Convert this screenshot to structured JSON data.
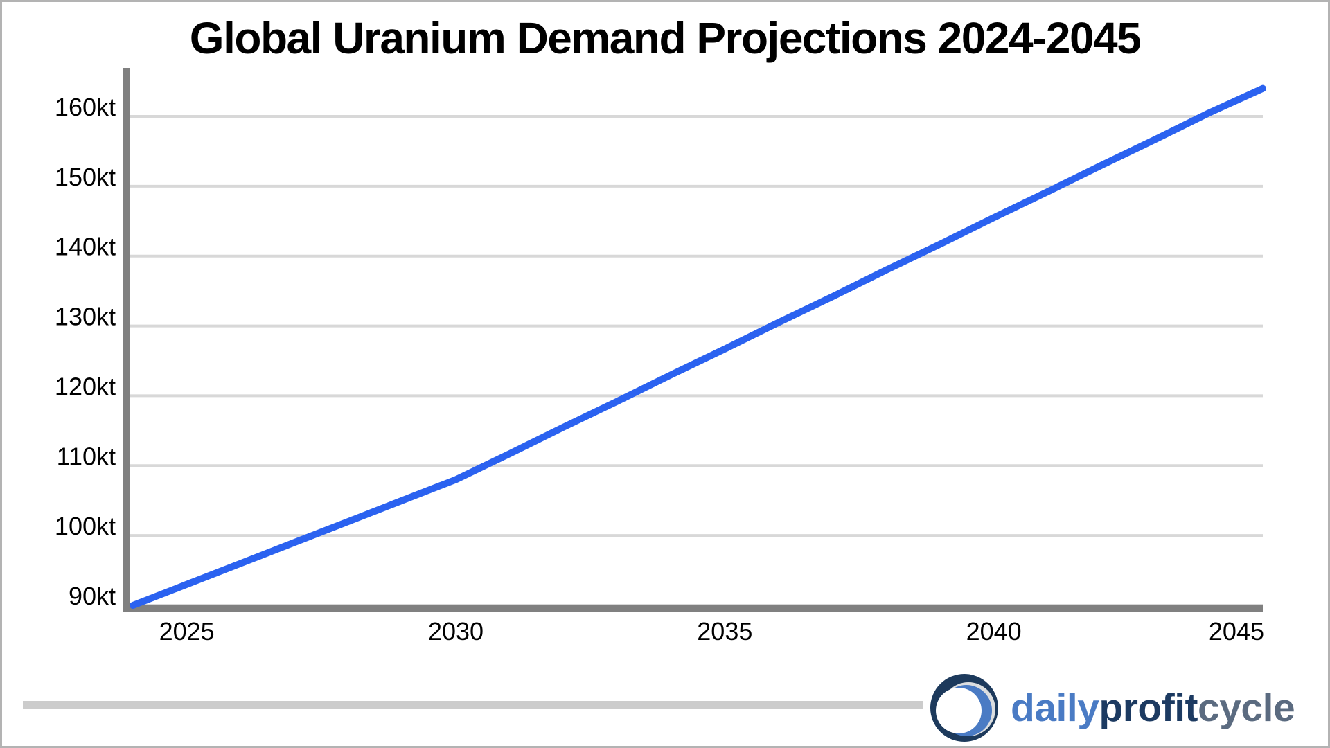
{
  "chart_data": {
    "type": "line",
    "title": "Global Uranium Demand Projections 2024-2045",
    "x": [
      2024,
      2025,
      2026,
      2027,
      2028,
      2029,
      2030,
      2031,
      2032,
      2033,
      2034,
      2035,
      2036,
      2037,
      2038,
      2039,
      2040,
      2041,
      2042,
      2043,
      2044,
      2045
    ],
    "values": [
      90,
      93,
      96,
      99,
      102,
      105,
      108,
      111.7,
      115.5,
      119.2,
      123,
      126.7,
      130.5,
      134.2,
      138,
      141.7,
      145.5,
      149.2,
      153,
      156.7,
      160.5,
      164
    ],
    "unit": "kt",
    "xlim": [
      2024,
      2045
    ],
    "ylim": [
      90,
      167
    ],
    "y_ticks": [
      90,
      100,
      110,
      120,
      130,
      140,
      150,
      160
    ],
    "y_tick_suffix": "kt",
    "x_ticks": [
      2025,
      2030,
      2035,
      2040,
      2045
    ],
    "grid": "horizontal",
    "legend": "none",
    "line_color": "#2b62f0",
    "axis_color": "#808080",
    "grid_color": "#d8d8d8",
    "label_color": "#000000"
  },
  "footer": {
    "divider_color": "#cccccc",
    "logo": {
      "words": [
        {
          "text": "daily",
          "color": "#4a7bc4"
        },
        {
          "text": "profit",
          "color": "#1c3a61"
        },
        {
          "text": "cycle",
          "color": "#5b6b80"
        }
      ],
      "icon_colors": {
        "navy": "#1d3a5c",
        "gray": "#dcdee0",
        "blue": "#4a7bc4",
        "white": "#ffffff"
      }
    }
  }
}
